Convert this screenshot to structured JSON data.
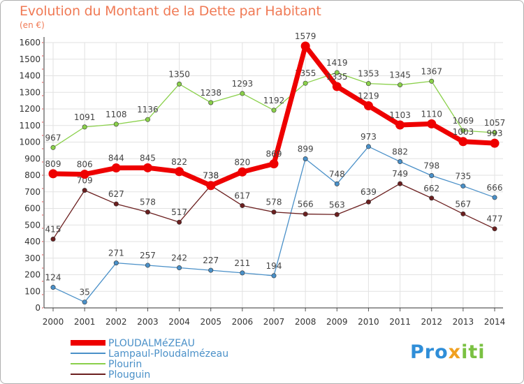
{
  "title": "Evolution du Montant de la Dette par Habitant",
  "unit_label": "(en €)",
  "logo": {
    "part1": "Pro",
    "part2": "x",
    "part3": "iti"
  },
  "colors": {
    "title": "#f07a55",
    "grid": "#dddddd"
  },
  "chart_data": {
    "type": "line",
    "title": "Evolution du Montant de la Dette par Habitant",
    "ylabel": "(en €)",
    "xlabel": "",
    "x": [
      "2000",
      "2001",
      "2002",
      "2003",
      "2004",
      "2005",
      "2006",
      "2007",
      "2008",
      "2009",
      "2010",
      "2011",
      "2012",
      "2013",
      "2014"
    ],
    "ylim": [
      0,
      1600
    ],
    "yticks": [
      0,
      100,
      200,
      300,
      400,
      500,
      600,
      700,
      800,
      900,
      1000,
      1100,
      1200,
      1300,
      1400,
      1500,
      1600
    ],
    "grid": true,
    "legend": "bottom-left",
    "series": [
      {
        "name": "Lampaul-Ploudalmézeau",
        "color": "#4a90c8",
        "values": [
          124,
          35,
          271,
          257,
          242,
          227,
          211,
          194,
          899,
          748,
          973,
          882,
          798,
          735,
          666
        ]
      },
      {
        "name": "Plourin",
        "color": "#8ad04a",
        "values": [
          967,
          1091,
          1108,
          1136,
          1350,
          1238,
          1293,
          1192,
          1355,
          1419,
          1353,
          1345,
          1367,
          1069,
          1057
        ]
      },
      {
        "name": "Plouguin",
        "color": "#6b1f1f",
        "values": [
          415,
          709,
          627,
          578,
          517,
          738,
          617,
          578,
          566,
          563,
          639,
          749,
          662,
          567,
          477
        ]
      },
      {
        "name": "PLOUDALMéZEAU",
        "color": "#ee0000",
        "values": [
          809,
          806,
          844,
          845,
          822,
          738,
          820,
          869,
          1579,
          1335,
          1219,
          1103,
          1110,
          1003,
          993
        ]
      }
    ]
  }
}
